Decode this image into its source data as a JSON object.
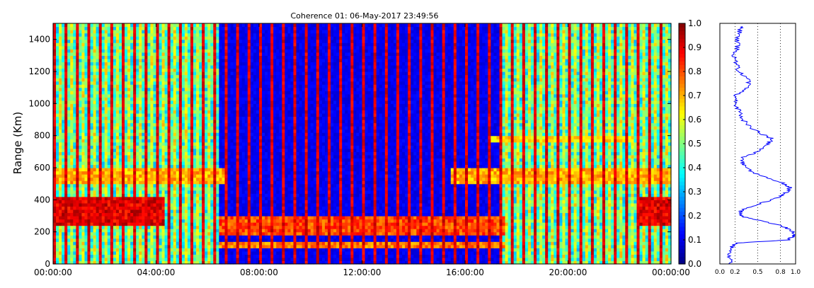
{
  "chart_data": [
    {
      "type": "heatmap",
      "title": "Coherence 01: 06-May-2017 23:49:56",
      "xlabel": "",
      "ylabel": "Range (Km)",
      "x_ticks": [
        "00:00:00",
        "04:00:00",
        "08:00:00",
        "12:00:00",
        "16:00:00",
        "20:00:00",
        "00:00:00"
      ],
      "x_range_hours": [
        0,
        24
      ],
      "y_ticks": [
        0,
        200,
        400,
        600,
        800,
        1000,
        1200,
        1400
      ],
      "ylim": [
        0,
        1500
      ],
      "colormap": "jet",
      "colorbar": {
        "ticks": [
          "0.0",
          "0.1",
          "0.2",
          "0.3",
          "0.4",
          "0.5",
          "0.6",
          "0.7",
          "0.8",
          "0.9",
          "1.0"
        ],
        "range": [
          0,
          1
        ]
      },
      "features": {
        "dark_columns_hours": [
          [
            6.4,
            17.3
          ]
        ],
        "bright_echo_bands": [
          {
            "range_km": [
              250,
              420
            ],
            "hours": [
              [
                0,
                4.3
              ],
              [
                22.8,
                24
              ]
            ],
            "coherence": 0.9
          },
          {
            "range_km": [
              500,
              600
            ],
            "hours": [
              [
                0,
                6.8
              ],
              [
                15.5,
                24
              ]
            ],
            "coherence": 0.7
          },
          {
            "range_km": [
              100,
              130
            ],
            "hours": [
              [
                6.4,
                17.5
              ]
            ],
            "coherence": 0.75
          },
          {
            "range_km": [
              190,
              300
            ],
            "hours": [
              [
                6.4,
                17.5
              ]
            ],
            "coherence": 0.8
          },
          {
            "range_km": [
              760,
              800
            ],
            "hours": [
              [
                17,
                22.5
              ]
            ],
            "coherence": 0.65
          }
        ]
      }
    },
    {
      "type": "line",
      "title": "",
      "x_ticks": [
        "0.0",
        "0.2",
        "0.5",
        "0.8",
        "1.0"
      ],
      "xlim": [
        0,
        1
      ],
      "ylim": [
        0,
        1500
      ],
      "grid": "vertical dotted",
      "profile": {
        "range_km": [
          0,
          50,
          100,
          130,
          150,
          175,
          200,
          230,
          260,
          290,
          310,
          340,
          380,
          420,
          450,
          480,
          500,
          540,
          580,
          620,
          660,
          700,
          740,
          780,
          810,
          850,
          900,
          950,
          1000,
          1050,
          1100,
          1150,
          1200,
          1250,
          1300,
          1350,
          1400,
          1450,
          1480
        ],
        "coherence": [
          0.15,
          0.12,
          0.14,
          0.2,
          0.9,
          0.98,
          0.97,
          0.85,
          0.65,
          0.35,
          0.25,
          0.3,
          0.55,
          0.8,
          0.9,
          0.92,
          0.85,
          0.6,
          0.4,
          0.3,
          0.28,
          0.5,
          0.6,
          0.7,
          0.55,
          0.4,
          0.3,
          0.25,
          0.2,
          0.22,
          0.35,
          0.4,
          0.25,
          0.22,
          0.18,
          0.24,
          0.22,
          0.26,
          0.3
        ]
      }
    }
  ]
}
